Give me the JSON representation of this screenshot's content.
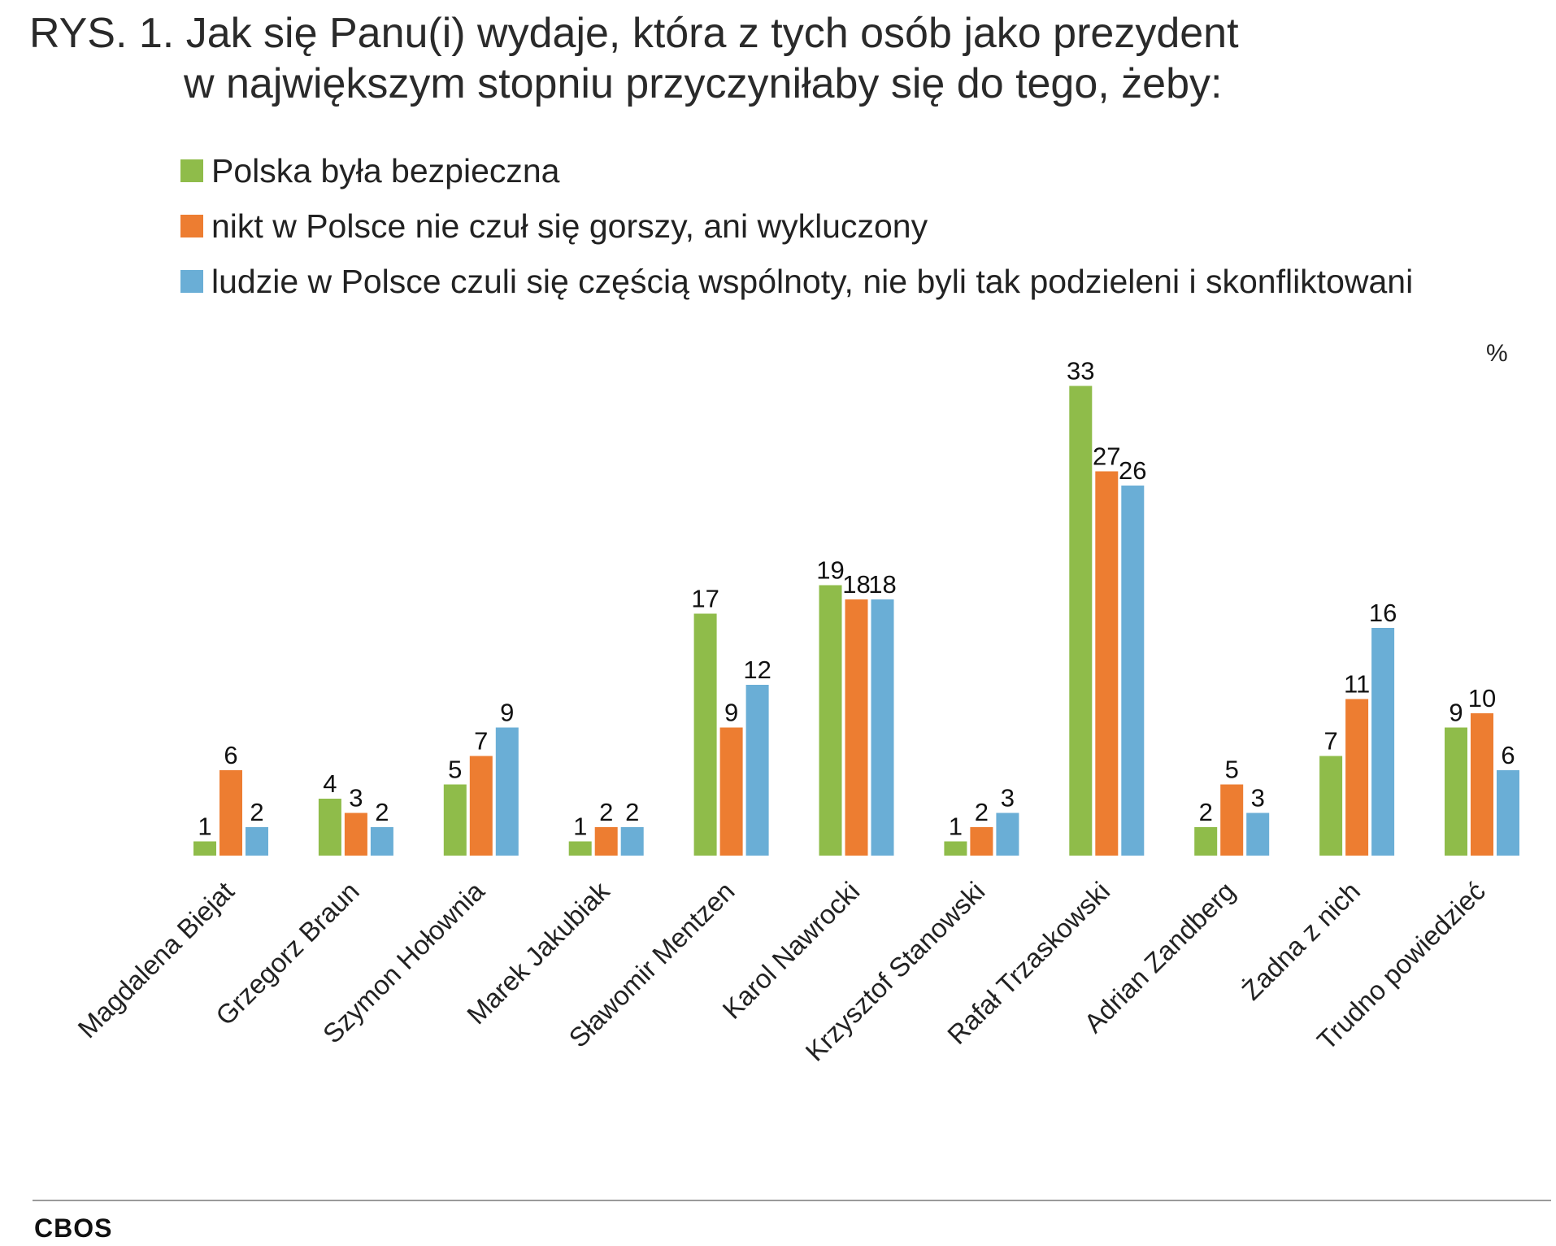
{
  "title": {
    "line1": "RYS. 1. Jak się Panu(i) wydaje, która z tych osób jako prezydent",
    "line2": "w największym stopniu przyczyniłaby się do tego, żeby:"
  },
  "unit_label": "%",
  "source": "CBOS",
  "colors": {
    "series1": "#8fbc4a",
    "series2": "#ed7d31",
    "series3": "#6aaed6"
  },
  "chart_data": {
    "type": "bar",
    "title": "RYS. 1. Jak się Panu(i) wydaje, która z tych osób jako prezydent w największym stopniu przyczyniłaby się do tego, żeby:",
    "xlabel": "",
    "ylabel": "%",
    "ylim": [
      0,
      35
    ],
    "grid": false,
    "legend_position": "top",
    "categories": [
      "Magdalena Biejat",
      "Grzegorz Braun",
      "Szymon Hołownia",
      "Marek Jakubiak",
      "Sławomir Mentzen",
      "Karol Nawrocki",
      "Krzysztof Stanowski",
      "Rafał Trzaskowski",
      "Adrian Zandberg",
      "Żadna z nich",
      "Trudno powiedzieć"
    ],
    "series": [
      {
        "name": "Polska była bezpieczna",
        "color": "#8fbc4a",
        "values": [
          1,
          4,
          5,
          1,
          17,
          19,
          1,
          33,
          2,
          7,
          9
        ]
      },
      {
        "name": "nikt w Polsce nie czuł się gorszy, ani wykluczony",
        "color": "#ed7d31",
        "values": [
          6,
          3,
          7,
          2,
          9,
          18,
          2,
          27,
          5,
          11,
          10
        ]
      },
      {
        "name": "ludzie w Polsce czuli się częścią wspólnoty, nie byli tak podzieleni i skonfliktowani",
        "color": "#6aaed6",
        "values": [
          2,
          2,
          9,
          2,
          12,
          18,
          3,
          26,
          3,
          16,
          6
        ]
      }
    ]
  }
}
